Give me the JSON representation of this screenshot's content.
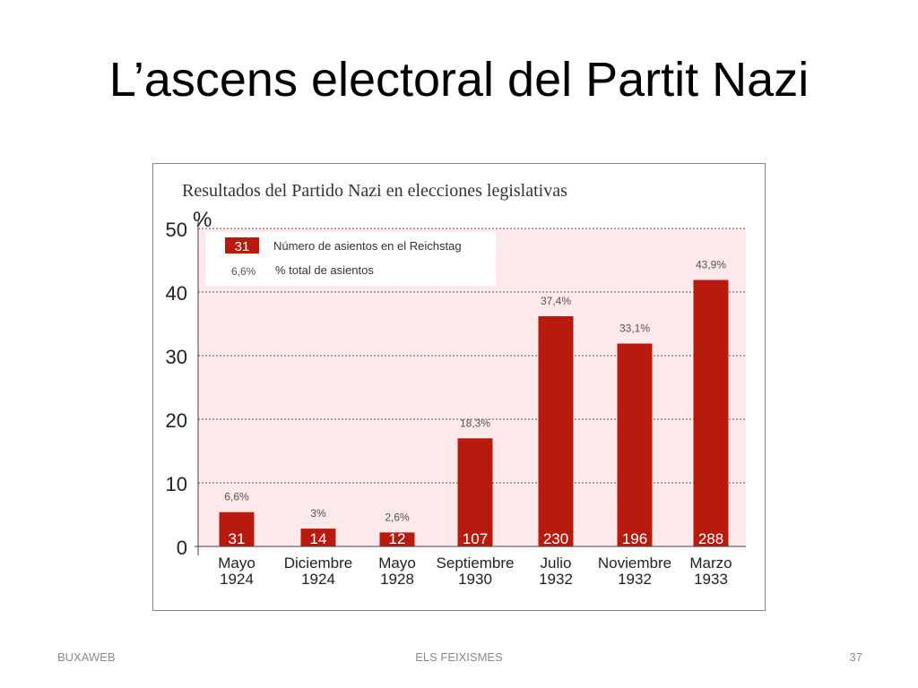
{
  "slide": {
    "title": "L’ascens electoral del Partit Nazi",
    "footer_left": "BUXAWEB",
    "footer_center": "ELS FEIXISMES",
    "footer_right": "37"
  },
  "colors": {
    "bar": "#b81a0e",
    "plot_bg": "#fde9e9",
    "grid": "#555555",
    "bar_label": "#ffffff",
    "pct_label": "#555555"
  },
  "chart_data": {
    "type": "bar",
    "title": "Resultados del Partido Nazi en elecciones legislativas",
    "ylabel": "%",
    "ylim": [
      0,
      50
    ],
    "yticks": [
      0,
      10,
      20,
      30,
      40,
      50
    ],
    "grid": true,
    "categories": [
      [
        "Mayo",
        "1924"
      ],
      [
        "Diciembre",
        "1924"
      ],
      [
        "Mayo",
        "1928"
      ],
      [
        "Septiembre",
        "1930"
      ],
      [
        "Julio",
        "1932"
      ],
      [
        "Noviembre",
        "1932"
      ],
      [
        "Marzo",
        "1933"
      ]
    ],
    "values": [
      6.6,
      3,
      2.6,
      18.3,
      37.4,
      33.1,
      43.9
    ],
    "bar_height_values": [
      5.4,
      2.8,
      2.2,
      17.0,
      36.2,
      31.9,
      41.9
    ],
    "pct_labels": [
      "6,6%",
      "3%",
      "2,6%",
      "18,3%",
      "37,4%",
      "33,1%",
      "43,9%"
    ],
    "seats": [
      "31",
      "14",
      "12",
      "107",
      "230",
      "196",
      "288"
    ],
    "legend": {
      "position": "top-left",
      "seats_sample": "31",
      "seats_text": "Número de asientos en el Reichstag",
      "pct_sample": "6,6%",
      "pct_text": "% total de asientos"
    }
  }
}
